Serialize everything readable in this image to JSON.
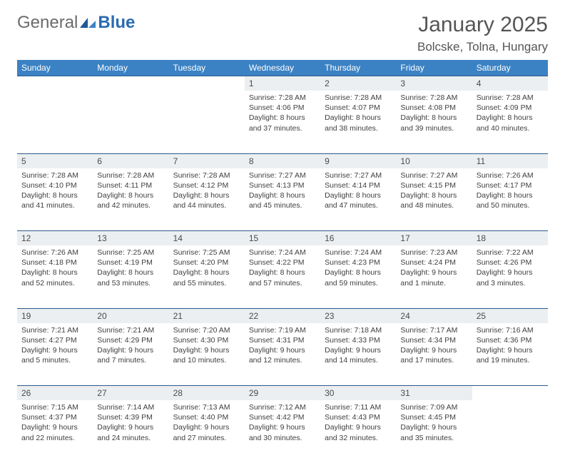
{
  "brand": {
    "part1": "General",
    "part2": "Blue"
  },
  "title": "January 2025",
  "location": "Bolcske, Tolna, Hungary",
  "colors": {
    "header_bg": "#3b82c4",
    "header_text": "#ffffff",
    "daynum_bg": "#eceff1",
    "rule": "#2b5a8a",
    "text": "#4a4a4a",
    "logo_blue": "#2b6bb0"
  },
  "weekdays": [
    "Sunday",
    "Monday",
    "Tuesday",
    "Wednesday",
    "Thursday",
    "Friday",
    "Saturday"
  ],
  "weeks": [
    [
      null,
      null,
      null,
      {
        "n": "1",
        "sunrise": "Sunrise: 7:28 AM",
        "sunset": "Sunset: 4:06 PM",
        "daylight": "Daylight: 8 hours and 37 minutes."
      },
      {
        "n": "2",
        "sunrise": "Sunrise: 7:28 AM",
        "sunset": "Sunset: 4:07 PM",
        "daylight": "Daylight: 8 hours and 38 minutes."
      },
      {
        "n": "3",
        "sunrise": "Sunrise: 7:28 AM",
        "sunset": "Sunset: 4:08 PM",
        "daylight": "Daylight: 8 hours and 39 minutes."
      },
      {
        "n": "4",
        "sunrise": "Sunrise: 7:28 AM",
        "sunset": "Sunset: 4:09 PM",
        "daylight": "Daylight: 8 hours and 40 minutes."
      }
    ],
    [
      {
        "n": "5",
        "sunrise": "Sunrise: 7:28 AM",
        "sunset": "Sunset: 4:10 PM",
        "daylight": "Daylight: 8 hours and 41 minutes."
      },
      {
        "n": "6",
        "sunrise": "Sunrise: 7:28 AM",
        "sunset": "Sunset: 4:11 PM",
        "daylight": "Daylight: 8 hours and 42 minutes."
      },
      {
        "n": "7",
        "sunrise": "Sunrise: 7:28 AM",
        "sunset": "Sunset: 4:12 PM",
        "daylight": "Daylight: 8 hours and 44 minutes."
      },
      {
        "n": "8",
        "sunrise": "Sunrise: 7:27 AM",
        "sunset": "Sunset: 4:13 PM",
        "daylight": "Daylight: 8 hours and 45 minutes."
      },
      {
        "n": "9",
        "sunrise": "Sunrise: 7:27 AM",
        "sunset": "Sunset: 4:14 PM",
        "daylight": "Daylight: 8 hours and 47 minutes."
      },
      {
        "n": "10",
        "sunrise": "Sunrise: 7:27 AM",
        "sunset": "Sunset: 4:15 PM",
        "daylight": "Daylight: 8 hours and 48 minutes."
      },
      {
        "n": "11",
        "sunrise": "Sunrise: 7:26 AM",
        "sunset": "Sunset: 4:17 PM",
        "daylight": "Daylight: 8 hours and 50 minutes."
      }
    ],
    [
      {
        "n": "12",
        "sunrise": "Sunrise: 7:26 AM",
        "sunset": "Sunset: 4:18 PM",
        "daylight": "Daylight: 8 hours and 52 minutes."
      },
      {
        "n": "13",
        "sunrise": "Sunrise: 7:25 AM",
        "sunset": "Sunset: 4:19 PM",
        "daylight": "Daylight: 8 hours and 53 minutes."
      },
      {
        "n": "14",
        "sunrise": "Sunrise: 7:25 AM",
        "sunset": "Sunset: 4:20 PM",
        "daylight": "Daylight: 8 hours and 55 minutes."
      },
      {
        "n": "15",
        "sunrise": "Sunrise: 7:24 AM",
        "sunset": "Sunset: 4:22 PM",
        "daylight": "Daylight: 8 hours and 57 minutes."
      },
      {
        "n": "16",
        "sunrise": "Sunrise: 7:24 AM",
        "sunset": "Sunset: 4:23 PM",
        "daylight": "Daylight: 8 hours and 59 minutes."
      },
      {
        "n": "17",
        "sunrise": "Sunrise: 7:23 AM",
        "sunset": "Sunset: 4:24 PM",
        "daylight": "Daylight: 9 hours and 1 minute."
      },
      {
        "n": "18",
        "sunrise": "Sunrise: 7:22 AM",
        "sunset": "Sunset: 4:26 PM",
        "daylight": "Daylight: 9 hours and 3 minutes."
      }
    ],
    [
      {
        "n": "19",
        "sunrise": "Sunrise: 7:21 AM",
        "sunset": "Sunset: 4:27 PM",
        "daylight": "Daylight: 9 hours and 5 minutes."
      },
      {
        "n": "20",
        "sunrise": "Sunrise: 7:21 AM",
        "sunset": "Sunset: 4:29 PM",
        "daylight": "Daylight: 9 hours and 7 minutes."
      },
      {
        "n": "21",
        "sunrise": "Sunrise: 7:20 AM",
        "sunset": "Sunset: 4:30 PM",
        "daylight": "Daylight: 9 hours and 10 minutes."
      },
      {
        "n": "22",
        "sunrise": "Sunrise: 7:19 AM",
        "sunset": "Sunset: 4:31 PM",
        "daylight": "Daylight: 9 hours and 12 minutes."
      },
      {
        "n": "23",
        "sunrise": "Sunrise: 7:18 AM",
        "sunset": "Sunset: 4:33 PM",
        "daylight": "Daylight: 9 hours and 14 minutes."
      },
      {
        "n": "24",
        "sunrise": "Sunrise: 7:17 AM",
        "sunset": "Sunset: 4:34 PM",
        "daylight": "Daylight: 9 hours and 17 minutes."
      },
      {
        "n": "25",
        "sunrise": "Sunrise: 7:16 AM",
        "sunset": "Sunset: 4:36 PM",
        "daylight": "Daylight: 9 hours and 19 minutes."
      }
    ],
    [
      {
        "n": "26",
        "sunrise": "Sunrise: 7:15 AM",
        "sunset": "Sunset: 4:37 PM",
        "daylight": "Daylight: 9 hours and 22 minutes."
      },
      {
        "n": "27",
        "sunrise": "Sunrise: 7:14 AM",
        "sunset": "Sunset: 4:39 PM",
        "daylight": "Daylight: 9 hours and 24 minutes."
      },
      {
        "n": "28",
        "sunrise": "Sunrise: 7:13 AM",
        "sunset": "Sunset: 4:40 PM",
        "daylight": "Daylight: 9 hours and 27 minutes."
      },
      {
        "n": "29",
        "sunrise": "Sunrise: 7:12 AM",
        "sunset": "Sunset: 4:42 PM",
        "daylight": "Daylight: 9 hours and 30 minutes."
      },
      {
        "n": "30",
        "sunrise": "Sunrise: 7:11 AM",
        "sunset": "Sunset: 4:43 PM",
        "daylight": "Daylight: 9 hours and 32 minutes."
      },
      {
        "n": "31",
        "sunrise": "Sunrise: 7:09 AM",
        "sunset": "Sunset: 4:45 PM",
        "daylight": "Daylight: 9 hours and 35 minutes."
      },
      null
    ]
  ]
}
